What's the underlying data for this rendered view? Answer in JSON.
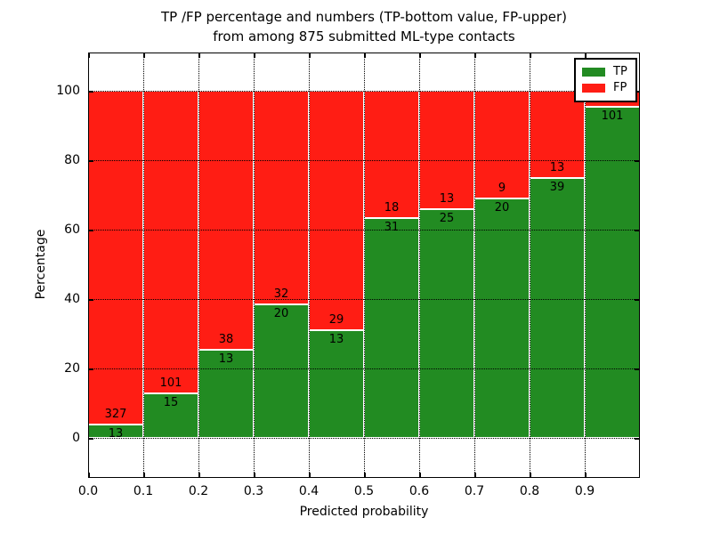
{
  "figure": {
    "title_line1": "TP /FP percentage and numbers (TP-bottom value, FP-upper)",
    "title_line2": "from among 875 submitted ML-type contacts"
  },
  "chart_data": {
    "type": "bar",
    "stacked": true,
    "percent_stacked": true,
    "title": "TP /FP percentage and numbers (TP-bottom value, FP-upper)\nfrom among 875 submitted ML-type contacts",
    "xlabel": "Predicted probability",
    "ylabel": "Percentage",
    "total_submitted_contacts": 875,
    "x_tick_labels": [
      "0.0",
      "0.1",
      "0.2",
      "0.3",
      "0.4",
      "0.5",
      "0.6",
      "0.7",
      "0.8",
      "0.9"
    ],
    "y_tick_labels": [
      "0",
      "20",
      "40",
      "60",
      "80",
      "100"
    ],
    "y_tick_values": [
      0,
      20,
      40,
      60,
      80,
      100
    ],
    "xlim": [
      0.0,
      1.0
    ],
    "ylim": [
      -11.5,
      111
    ],
    "bin_width": 0.1,
    "grid": true,
    "legend_position": "upper right",
    "categories": [
      "0.0-0.1",
      "0.1-0.2",
      "0.2-0.3",
      "0.3-0.4",
      "0.4-0.5",
      "0.5-0.6",
      "0.6-0.7",
      "0.7-0.8",
      "0.8-0.9",
      "0.9-1.0"
    ],
    "series": [
      {
        "name": "TP",
        "color": "#228b22",
        "counts": [
          13,
          15,
          13,
          20,
          13,
          31,
          25,
          20,
          39,
          101
        ]
      },
      {
        "name": "FP",
        "color": "#ff1d14",
        "counts": [
          327,
          101,
          38,
          32,
          29,
          18,
          13,
          9,
          13,
          null
        ]
      }
    ],
    "tp_percent": [
      3.8,
      12.9,
      25.5,
      38.5,
      31.0,
      63.3,
      65.8,
      69.0,
      75.0,
      95.3
    ],
    "tp_labels": [
      "13",
      "15",
      "13",
      "20",
      "13",
      "31",
      "25",
      "20",
      "39",
      "101"
    ],
    "fp_labels": [
      "327",
      "101",
      "38",
      "32",
      "29",
      "18",
      "13",
      "9",
      "13",
      ""
    ],
    "legend": {
      "entries": [
        {
          "label": "TP",
          "color": "#228b22"
        },
        {
          "label": "FP",
          "color": "#ff1d14"
        }
      ]
    }
  }
}
